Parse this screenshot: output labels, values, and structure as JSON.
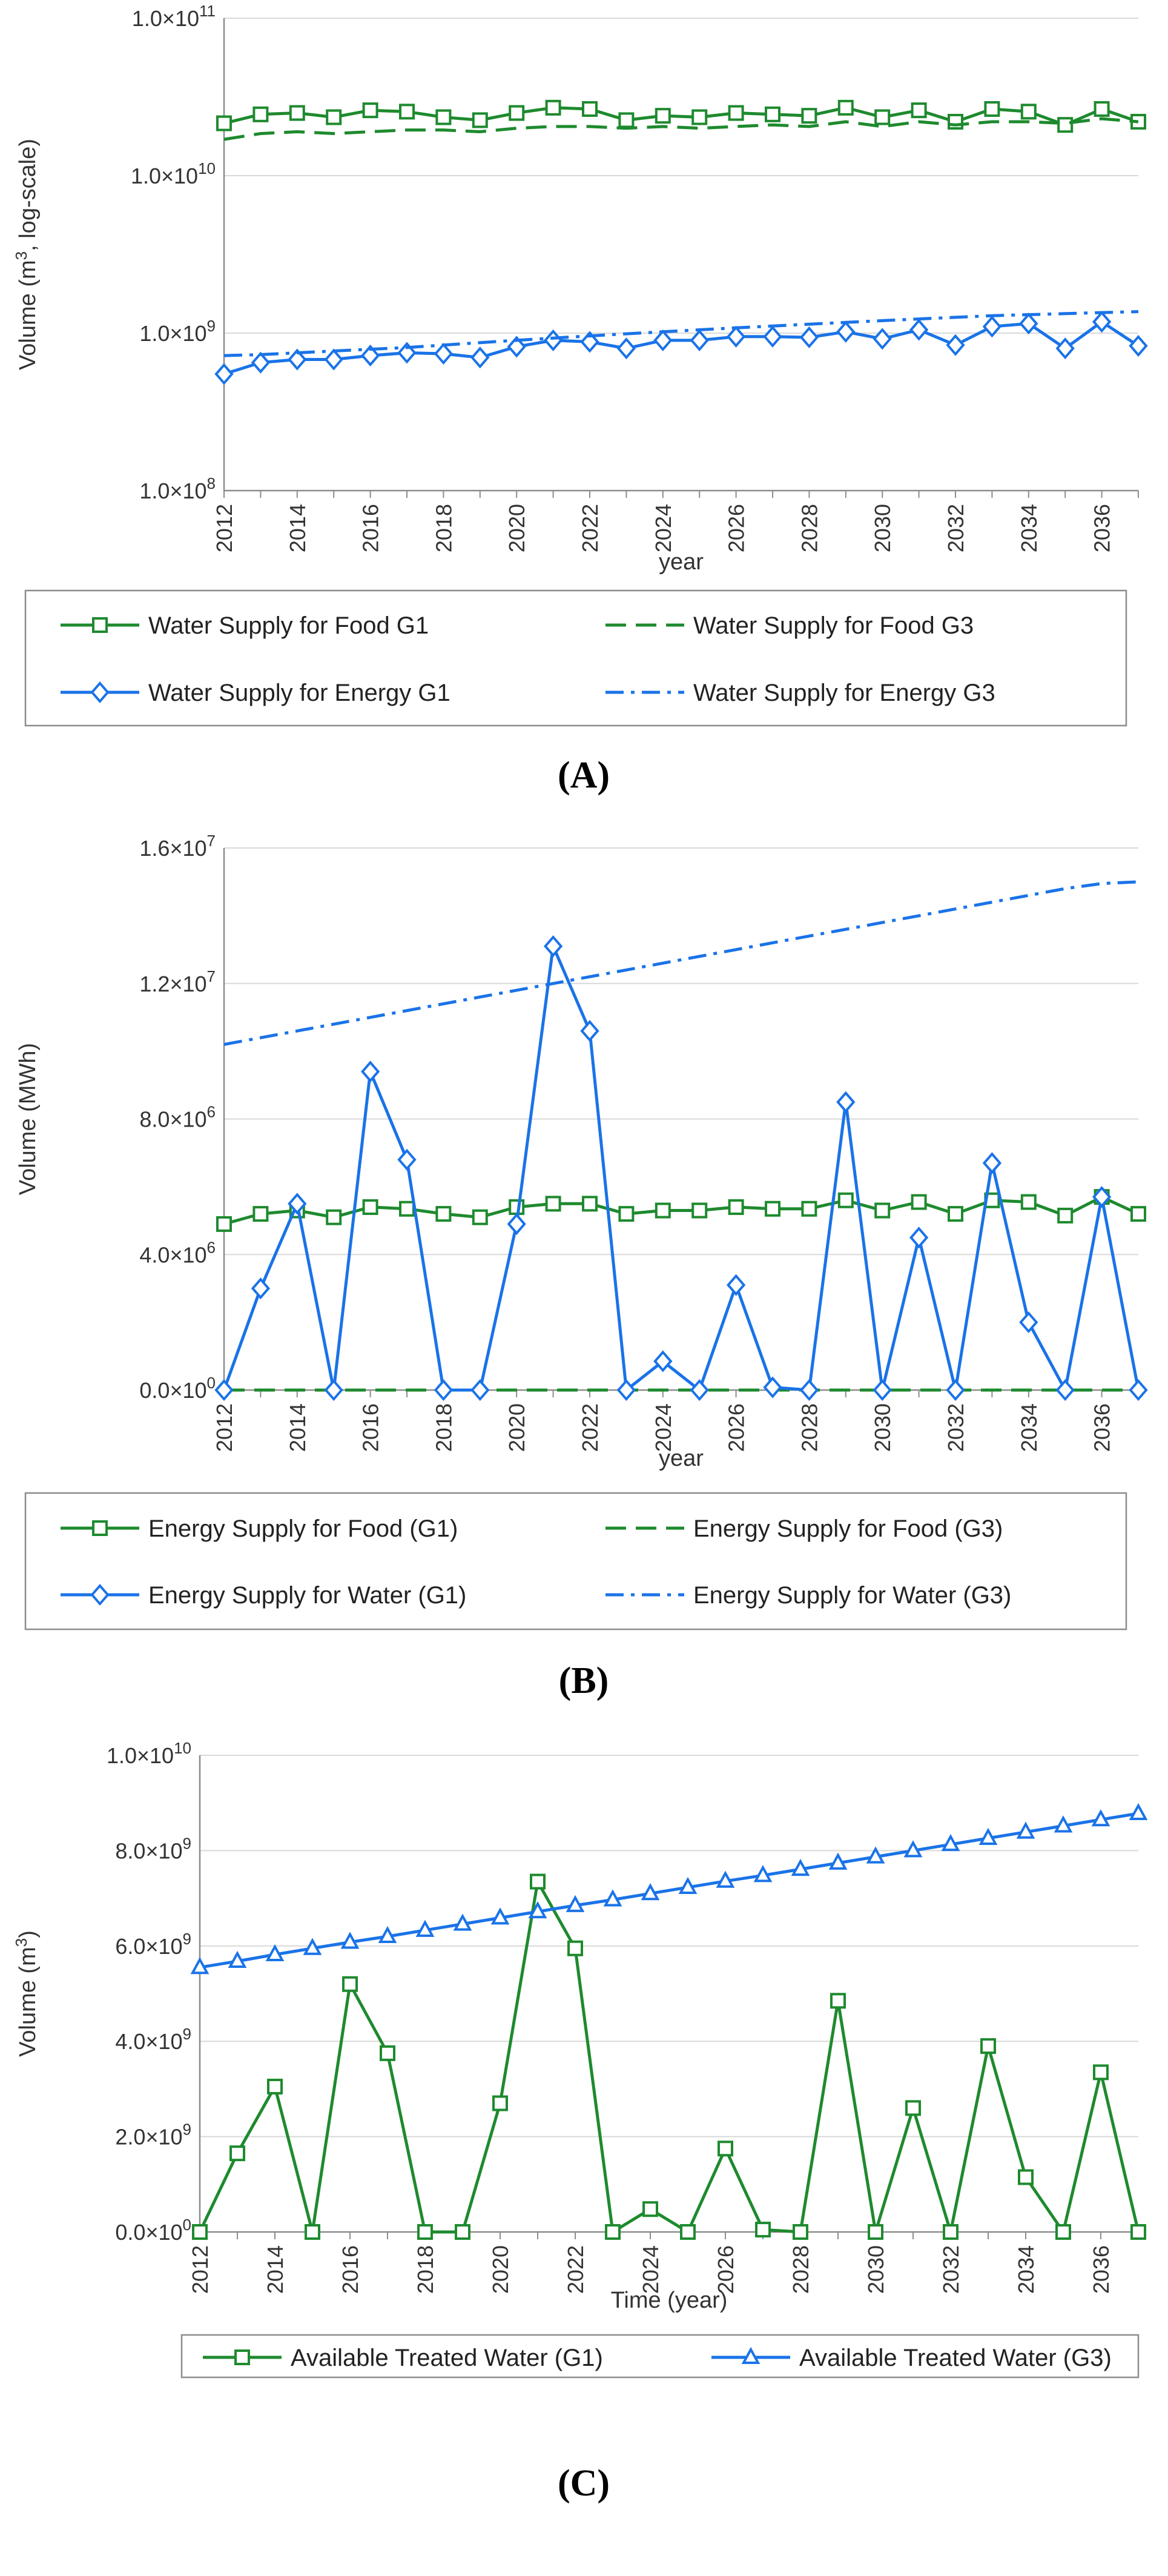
{
  "chart_data": [
    {
      "type": "line",
      "panel_label": "(A)",
      "title": "",
      "xlabel": "year",
      "ylabel": "Volume (m3, log-scale)",
      "ylabel_parts": {
        "pre": "Volume (m",
        "sup": "3",
        "post": ", log-scale)"
      },
      "yscale": "log",
      "ylim": [
        100000000,
        100000000000
      ],
      "yticks": [
        {
          "value": 100000000,
          "mant": "1.0×10",
          "exp": "8"
        },
        {
          "value": 1000000000,
          "mant": "1.0×10",
          "exp": "9"
        },
        {
          "value": 10000000000,
          "mant": "1.0×10",
          "exp": "10"
        },
        {
          "value": 100000000000,
          "mant": "1.0×10",
          "exp": "11"
        }
      ],
      "xlim": [
        2012,
        2037
      ],
      "xticks": [
        "2012",
        "2014",
        "2016",
        "2018",
        "2020",
        "2022",
        "2024",
        "2026",
        "2028",
        "2030",
        "2032",
        "2034",
        "2036"
      ],
      "x": [
        2012,
        2013,
        2014,
        2015,
        2016,
        2017,
        2018,
        2019,
        2020,
        2021,
        2022,
        2023,
        2024,
        2025,
        2026,
        2027,
        2028,
        2029,
        2030,
        2031,
        2032,
        2033,
        2034,
        2035,
        2036,
        2037
      ],
      "grid": "horizontal",
      "legend_position": "below",
      "series": [
        {
          "name": "Water Supply for Food G1",
          "color": "#1e8a2e",
          "style": "solid",
          "marker": "square",
          "values": [
            21500000000,
            24500000000,
            25000000000,
            23500000000,
            26000000000,
            25500000000,
            23500000000,
            22500000000,
            25000000000,
            27000000000,
            26500000000,
            22500000000,
            24000000000,
            23500000000,
            25000000000,
            24500000000,
            24000000000,
            27000000000,
            23500000000,
            26000000000,
            22000000000,
            26500000000,
            25500000000,
            21000000000,
            26500000000,
            22000000000
          ]
        },
        {
          "name": "Water Supply for Food G3",
          "color": "#1e8a2e",
          "style": "dash",
          "marker": "none",
          "values": [
            17000000000,
            18500000000,
            19000000000,
            18500000000,
            19000000000,
            19500000000,
            19500000000,
            19000000000,
            20000000000,
            20500000000,
            20500000000,
            20000000000,
            20500000000,
            20000000000,
            20500000000,
            21000000000,
            20500000000,
            22000000000,
            20500000000,
            22000000000,
            21000000000,
            22000000000,
            22000000000,
            21500000000,
            23000000000,
            22000000000
          ]
        },
        {
          "name": "Water Supply for Energy G1",
          "color": "#1a73e8",
          "style": "solid",
          "marker": "diamond",
          "values": [
            550000000,
            650000000,
            680000000,
            680000000,
            720000000,
            750000000,
            740000000,
            700000000,
            820000000,
            900000000,
            880000000,
            800000000,
            900000000,
            900000000,
            950000000,
            950000000,
            940000000,
            1020000000,
            920000000,
            1050000000,
            840000000,
            1100000000,
            1150000000,
            800000000,
            1180000000,
            830000000
          ]
        },
        {
          "name": "Water Supply for Energy G3",
          "color": "#1a73e8",
          "style": "dashdot",
          "marker": "none",
          "values": [
            720000000,
            730000000,
            750000000,
            770000000,
            790000000,
            810000000,
            840000000,
            870000000,
            900000000,
            930000000,
            960000000,
            990000000,
            1020000000,
            1050000000,
            1080000000,
            1110000000,
            1140000000,
            1170000000,
            1200000000,
            1230000000,
            1260000000,
            1290000000,
            1310000000,
            1330000000,
            1350000000,
            1370000000
          ]
        }
      ]
    },
    {
      "type": "line",
      "panel_label": "(B)",
      "title": "",
      "xlabel": "year",
      "ylabel": "Volume (MWh)",
      "yscale": "linear",
      "ylim": [
        0,
        16000000
      ],
      "yticks": [
        {
          "value": 0,
          "mant": "0.0×10",
          "exp": "0"
        },
        {
          "value": 4000000,
          "mant": "4.0×10",
          "exp": "6"
        },
        {
          "value": 8000000,
          "mant": "8.0×10",
          "exp": "6"
        },
        {
          "value": 12000000,
          "mant": "1.2×10",
          "exp": "7"
        },
        {
          "value": 16000000,
          "mant": "1.6×10",
          "exp": "7"
        }
      ],
      "xlim": [
        2012,
        2037
      ],
      "xticks": [
        "2012",
        "2014",
        "2016",
        "2018",
        "2020",
        "2022",
        "2024",
        "2026",
        "2028",
        "2030",
        "2032",
        "2034",
        "2036"
      ],
      "x": [
        2012,
        2013,
        2014,
        2015,
        2016,
        2017,
        2018,
        2019,
        2020,
        2021,
        2022,
        2023,
        2024,
        2025,
        2026,
        2027,
        2028,
        2029,
        2030,
        2031,
        2032,
        2033,
        2034,
        2035,
        2036,
        2037
      ],
      "grid": "horizontal",
      "legend_position": "below",
      "series": [
        {
          "name": "Energy Supply for Food (G1)",
          "color": "#1e8a2e",
          "style": "solid",
          "marker": "square",
          "values": [
            4900000,
            5200000,
            5300000,
            5100000,
            5400000,
            5350000,
            5200000,
            5100000,
            5400000,
            5500000,
            5500000,
            5200000,
            5300000,
            5300000,
            5400000,
            5350000,
            5350000,
            5600000,
            5300000,
            5550000,
            5200000,
            5600000,
            5550000,
            5150000,
            5700000,
            5200000
          ]
        },
        {
          "name": "Energy Supply for Food (G3)",
          "color": "#1e8a2e",
          "style": "dash",
          "marker": "none",
          "values": [
            0,
            0,
            0,
            0,
            0,
            0,
            0,
            0,
            0,
            0,
            0,
            0,
            0,
            0,
            0,
            0,
            0,
            0,
            0,
            0,
            0,
            0,
            0,
            0,
            0,
            0
          ]
        },
        {
          "name": "Energy Supply for Water (G1)",
          "color": "#1a73e8",
          "style": "solid",
          "marker": "diamond",
          "values": [
            0,
            3000000,
            5500000,
            0,
            9400000,
            6800000,
            0,
            0,
            4900000,
            13100000,
            10600000,
            0,
            850000,
            0,
            3100000,
            80000,
            0,
            8500000,
            0,
            4500000,
            0,
            6700000,
            2000000,
            0,
            5700000,
            0
          ]
        },
        {
          "name": "Energy Supply for Water (G3)",
          "color": "#1a73e8",
          "style": "dashdot",
          "marker": "none",
          "values": [
            10200000,
            10400000,
            10600000,
            10800000,
            11000000,
            11200000,
            11400000,
            11600000,
            11800000,
            12000000,
            12200000,
            12400000,
            12600000,
            12800000,
            13000000,
            13200000,
            13400000,
            13600000,
            13800000,
            14000000,
            14200000,
            14400000,
            14600000,
            14800000,
            14950000,
            15000000
          ]
        }
      ]
    },
    {
      "type": "line",
      "panel_label": "(C)",
      "title": "",
      "xlabel": "Time (year)",
      "ylabel": "Volume (m3)",
      "ylabel_parts": {
        "pre": "Volume (m",
        "sup": "3",
        "post": ")"
      },
      "yscale": "linear",
      "ylim": [
        0,
        10000000000
      ],
      "yticks": [
        {
          "value": 0,
          "mant": "0.0×10",
          "exp": "0"
        },
        {
          "value": 2000000000,
          "mant": "2.0×10",
          "exp": "9"
        },
        {
          "value": 4000000000,
          "mant": "4.0×10",
          "exp": "9"
        },
        {
          "value": 6000000000,
          "mant": "6.0×10",
          "exp": "9"
        },
        {
          "value": 8000000000,
          "mant": "8.0×10",
          "exp": "9"
        },
        {
          "value": 10000000000,
          "mant": "1.0×10",
          "exp": "10"
        }
      ],
      "xlim": [
        2012,
        2037
      ],
      "xticks": [
        "2012",
        "2014",
        "2016",
        "2018",
        "2020",
        "2022",
        "2024",
        "2026",
        "2028",
        "2030",
        "2032",
        "2034",
        "2036"
      ],
      "x": [
        2012,
        2013,
        2014,
        2015,
        2016,
        2017,
        2018,
        2019,
        2020,
        2021,
        2022,
        2023,
        2024,
        2025,
        2026,
        2027,
        2028,
        2029,
        2030,
        2031,
        2032,
        2033,
        2034,
        2035,
        2036,
        2037
      ],
      "grid": "horizontal",
      "legend_position": "below",
      "series": [
        {
          "name": "Available Treated Water (G1)",
          "color": "#1e8a2e",
          "style": "solid",
          "marker": "square",
          "values": [
            0,
            1650000000,
            3050000000,
            0,
            5200000000,
            3750000000,
            0,
            0,
            2700000000,
            7350000000,
            5950000000,
            0,
            480000000,
            0,
            1750000000,
            50000000,
            0,
            4850000000,
            0,
            2600000000,
            0,
            3900000000,
            1150000000,
            0,
            3350000000,
            0
          ]
        },
        {
          "name": "Available Treated Water (G3)",
          "color": "#1a73e8",
          "style": "solid",
          "marker": "triangle",
          "values": [
            5550000000,
            5680000000,
            5820000000,
            5950000000,
            6080000000,
            6200000000,
            6330000000,
            6460000000,
            6590000000,
            6720000000,
            6850000000,
            6970000000,
            7100000000,
            7230000000,
            7360000000,
            7480000000,
            7610000000,
            7740000000,
            7870000000,
            8000000000,
            8130000000,
            8260000000,
            8390000000,
            8520000000,
            8650000000,
            8780000000
          ]
        }
      ]
    }
  ]
}
